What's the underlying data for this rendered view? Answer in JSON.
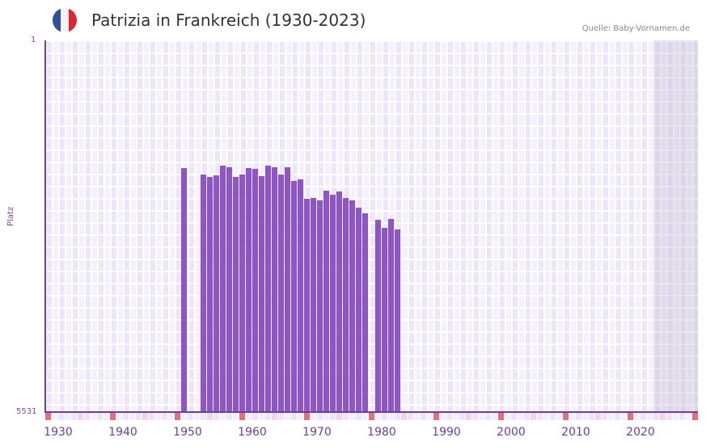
{
  "header": {
    "title": "Patrizia in Frankreich (1930-2023)",
    "source": "Quelle: Baby-Vornamen.de",
    "flag_colors": [
      "#2f4e9e",
      "#f4f4f6",
      "#e3262e"
    ]
  },
  "axis": {
    "y_title": "Platz",
    "y_top": "1",
    "y_bottom": "5531",
    "x_ticks": [
      "1930",
      "1940",
      "1950",
      "1960",
      "1970",
      "1980",
      "1990",
      "2000",
      "2010",
      "2020"
    ]
  },
  "colors": {
    "bar": "#8e55c6",
    "axis": "#6a3ea8",
    "marker_decade": "#e4707a",
    "marker_half": "#f5d6e0"
  },
  "chart_data": {
    "type": "bar",
    "title": "Patrizia in Frankreich (1930-2023)",
    "xlabel": "",
    "ylabel": "Platz",
    "y_inverted": true,
    "ylim": [
      5531,
      1
    ],
    "x": [
      1950,
      1953,
      1954,
      1955,
      1956,
      1957,
      1958,
      1959,
      1960,
      1961,
      1962,
      1963,
      1964,
      1965,
      1966,
      1967,
      1968,
      1969,
      1970,
      1971,
      1972,
      1973,
      1974,
      1975,
      1976,
      1977,
      1978,
      1980,
      1981,
      1982,
      1983
    ],
    "values": [
      1896,
      1992,
      2028,
      2004,
      1860,
      1884,
      2028,
      1992,
      1896,
      1908,
      2016,
      1860,
      1884,
      1992,
      1884,
      2089,
      2064,
      2354,
      2342,
      2378,
      2233,
      2293,
      2245,
      2342,
      2378,
      2486,
      2570,
      2666,
      2787,
      2654,
      2811
    ],
    "grid": true,
    "legend": null
  }
}
